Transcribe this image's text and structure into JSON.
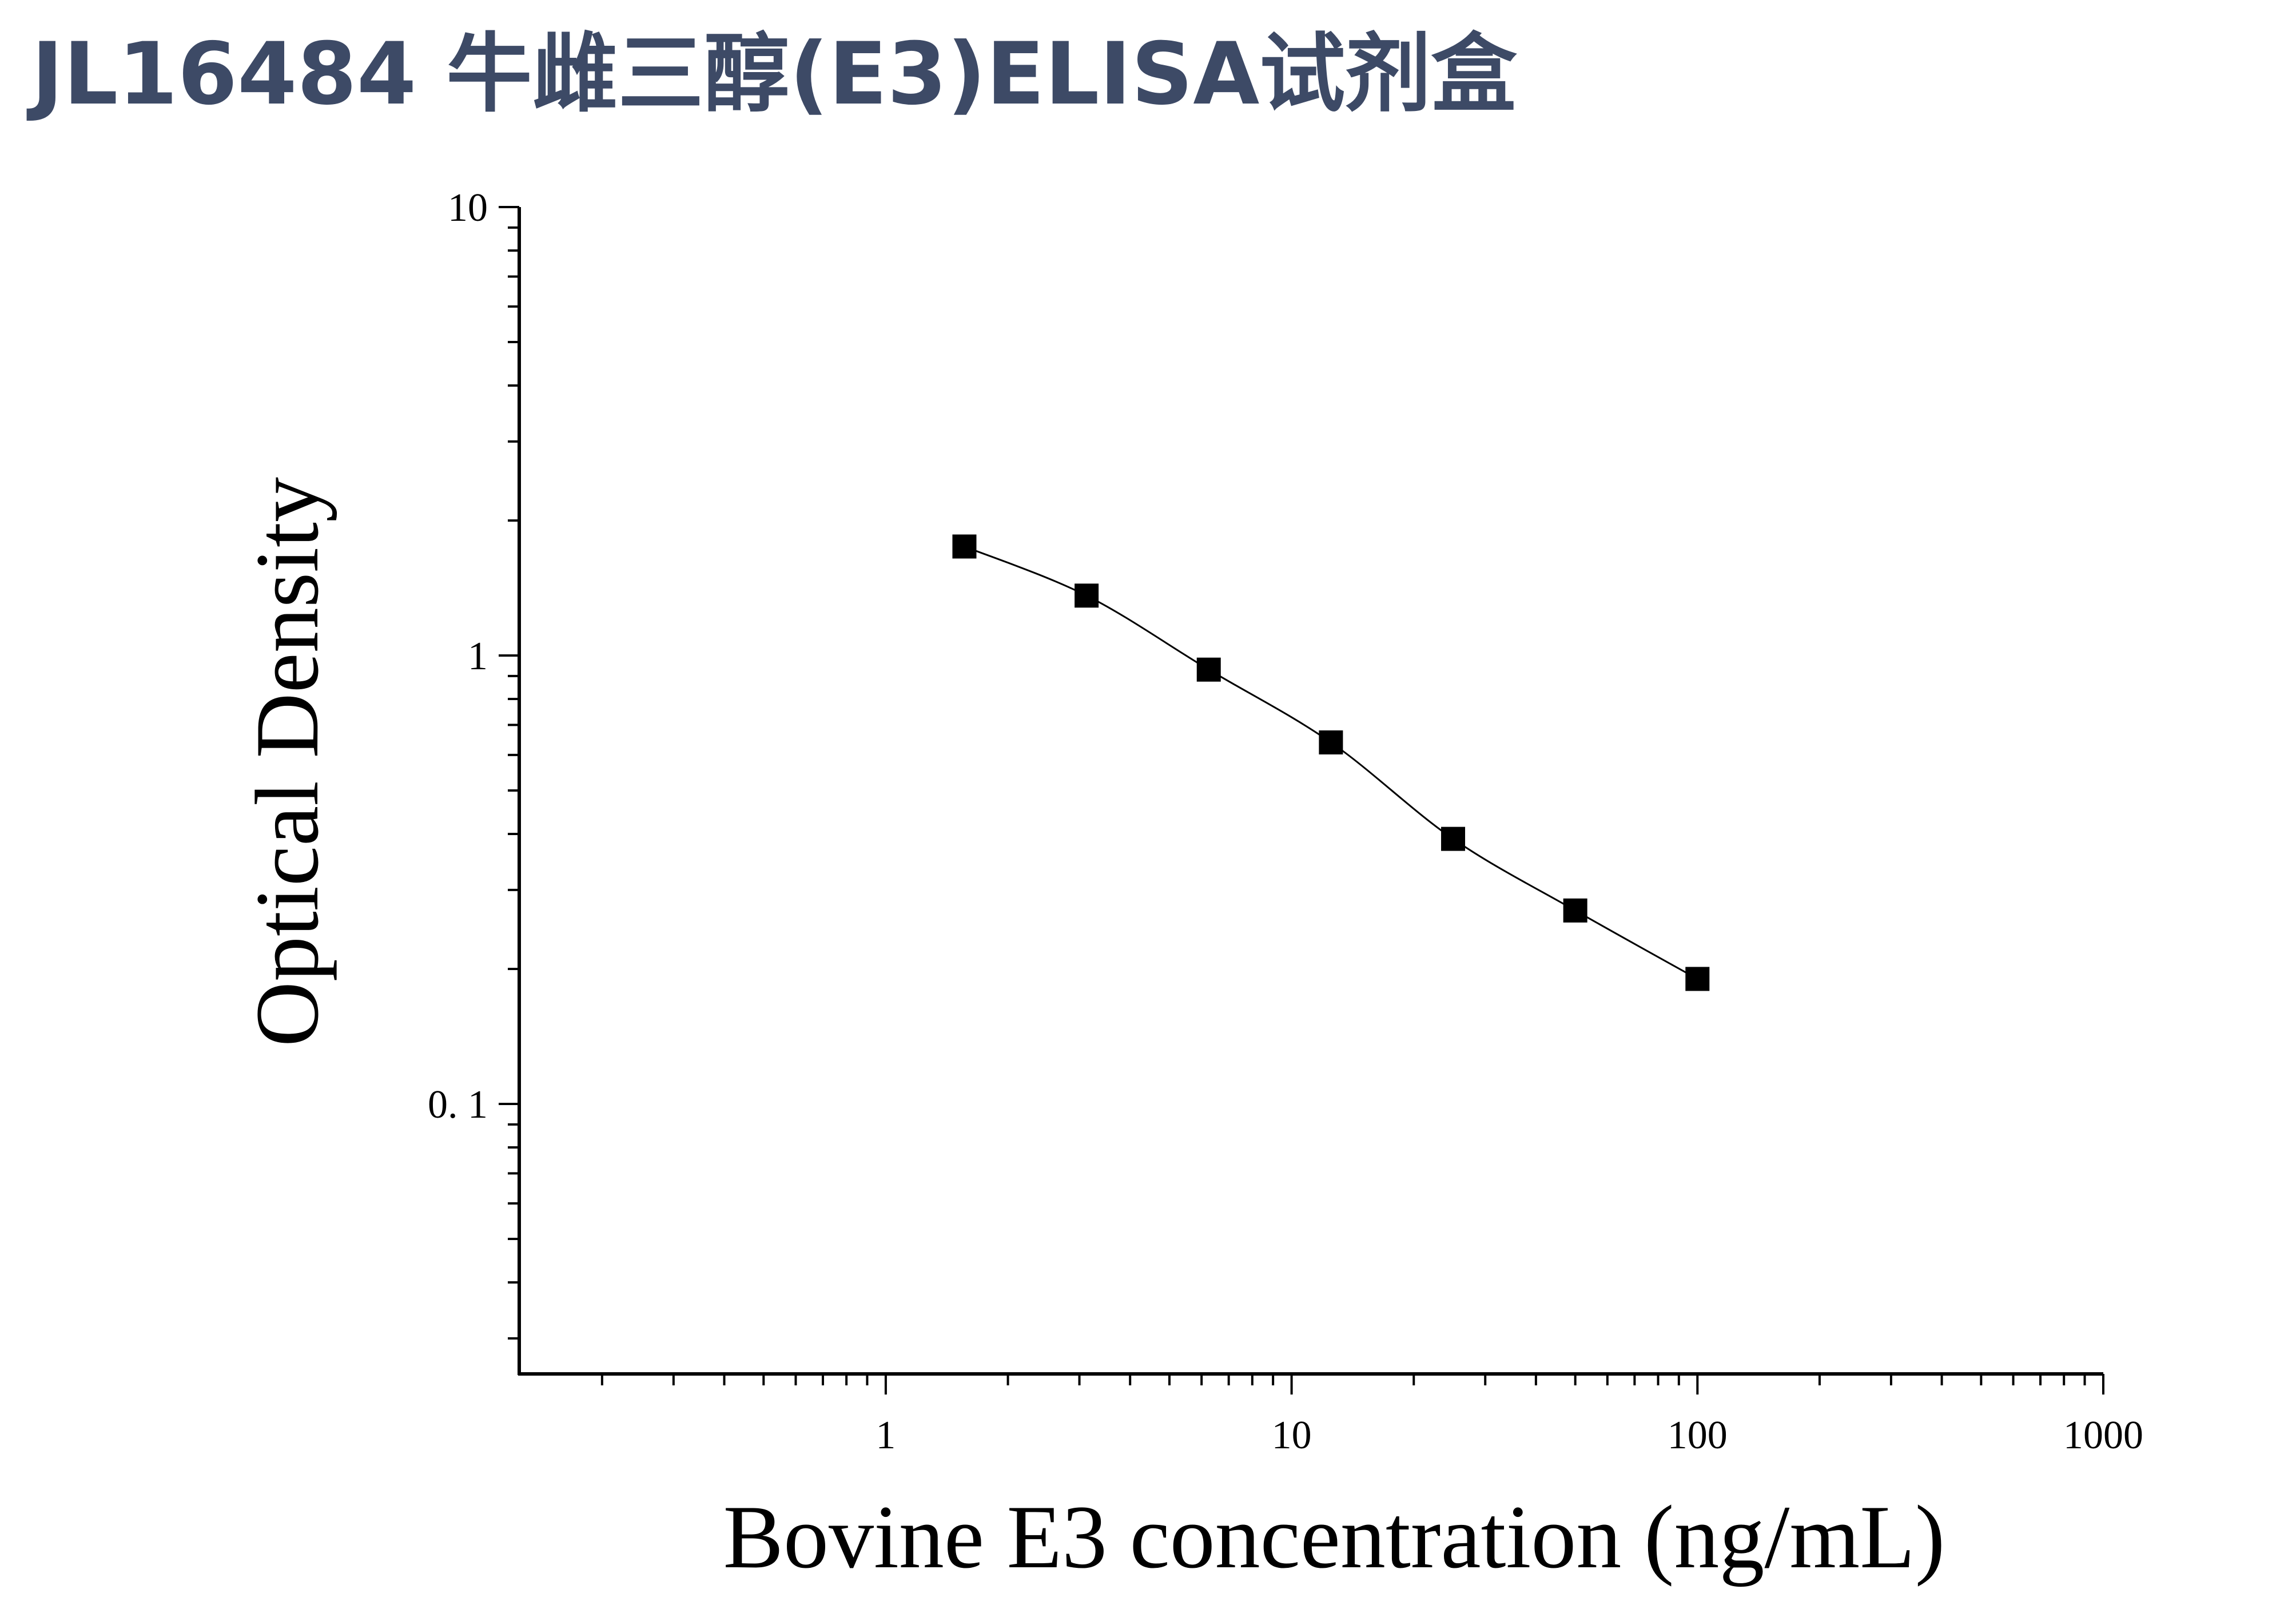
{
  "header": {
    "title": "JL16484 牛雌三醇(E3)ELISA试剂盒"
  },
  "chart_data": {
    "type": "scatter",
    "title": "JL16484 牛雌三醇(E3)ELISA试剂盒",
    "xlabel": "Bovine E3 concentration (ng/mL)",
    "ylabel": "Optical Density",
    "x_scale": "log",
    "y_scale": "log",
    "xlim": [
      0.125,
      1000
    ],
    "ylim": [
      0.025,
      10
    ],
    "x_ticks": [
      1,
      10,
      100,
      1000
    ],
    "x_tick_labels": [
      "1",
      "10",
      "100",
      "1000"
    ],
    "y_ticks": [
      0.1,
      1,
      10
    ],
    "y_tick_labels": [
      "0. 1",
      "1",
      "10"
    ],
    "grid": false,
    "series": [
      {
        "x": [
          1.5625,
          3.125,
          6.25,
          12.5,
          25,
          50,
          100
        ],
        "y": [
          1.75,
          1.36,
          0.93,
          0.64,
          0.39,
          0.27,
          0.19
        ],
        "marker": "square",
        "fit_line": true,
        "color": "#000000"
      }
    ]
  }
}
